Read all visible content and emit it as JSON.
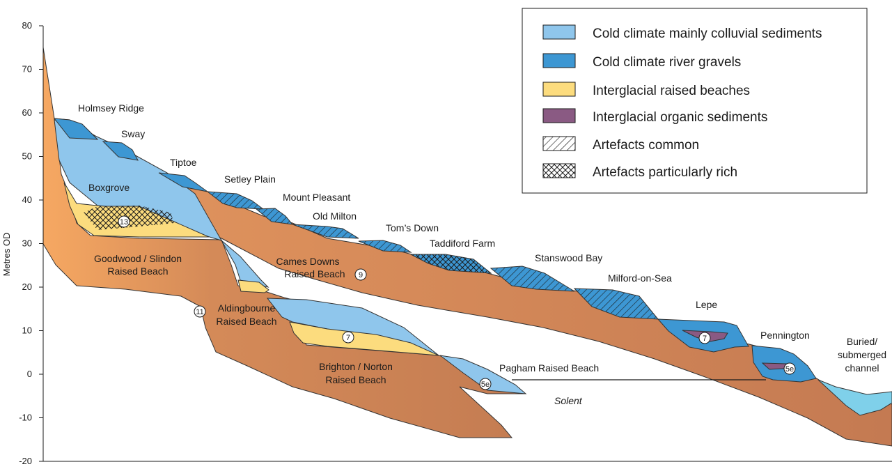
{
  "axis": {
    "ylabel": "Metres OD",
    "ticks": [
      "80",
      "70",
      "60",
      "50",
      "40",
      "30",
      "20",
      "10",
      "0",
      "-10",
      "-20"
    ]
  },
  "legend": [
    {
      "label": "Cold climate mainly colluvial sediments",
      "color": "#8fc6ec"
    },
    {
      "label": "Cold climate river gravels",
      "color": "#3d97d3"
    },
    {
      "label": "Interglacial raised beaches",
      "color": "#fcdc7e"
    },
    {
      "label": "Interglacial organic sediments",
      "color": "#8a5a83"
    },
    {
      "label": "Artefacts common",
      "pattern": "hatch"
    },
    {
      "label": "Artefacts particularly rich",
      "pattern": "crosshatch"
    }
  ],
  "terraces": {
    "holmsey_ridge": "Holmsey Ridge",
    "sway": "Sway",
    "tiptoe": "Tiptoe",
    "setley_plain": "Setley Plain",
    "mount_pleasant": "Mount Pleasant",
    "old_milton": "Old Milton",
    "toms_down": "Tom’s Down",
    "taddiford_farm": "Taddiford Farm",
    "stanswood_bay": "Stanswood Bay",
    "milford_on_sea": "Milford-on-Sea",
    "lepe": "Lepe",
    "pennington": "Pennington"
  },
  "beaches": {
    "boxgrove": "Boxgrove",
    "goodwood_1": "Goodwood / Slindon",
    "goodwood_2": "Raised Beach",
    "cames_1": "Cames Downs",
    "cames_2": "Raised Beach",
    "aldingbourne_1": "Aldingbourne",
    "aldingbourne_2": "Raised Beach",
    "brighton_1": "Brighton / Norton",
    "brighton_2": "Raised Beach",
    "pagham": "Pagham Raised Beach",
    "solent": "Solent",
    "buried_1": "Buried/",
    "buried_2": "submerged",
    "buried_3": "channel"
  },
  "stages": {
    "boxgrove": "13",
    "cames": "9",
    "aldingbourne": "11",
    "brighton": "7",
    "pagham": "5e",
    "lepe": "7",
    "pennington": "5e"
  }
}
